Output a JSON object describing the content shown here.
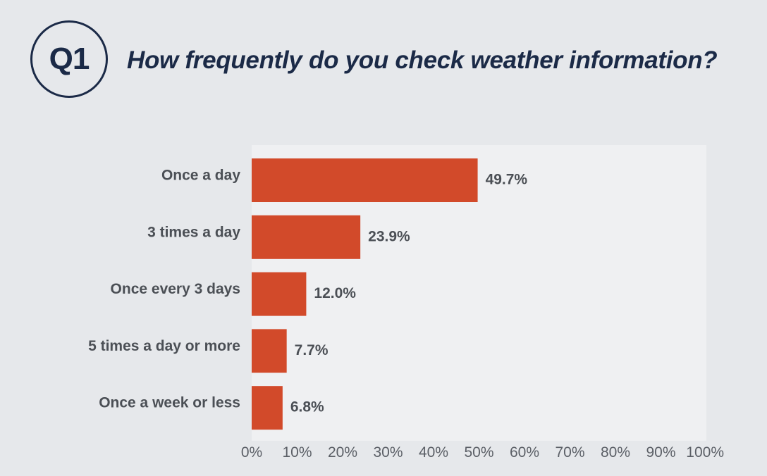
{
  "header": {
    "badge": "Q1",
    "question": "How frequently do you check weather information?"
  },
  "colors": {
    "bar": "#d24a2a",
    "plot_background": "#eff0f2",
    "page_background": "#e6e8eb",
    "title": "#1b2a47"
  },
  "chart_data": {
    "type": "bar",
    "orientation": "horizontal",
    "categories": [
      "Once a day",
      "3 times a day",
      "Once every 3 days",
      "5 times a day or more",
      "Once a week or less"
    ],
    "values": [
      49.7,
      23.9,
      12.0,
      7.7,
      6.8
    ],
    "value_labels": [
      "49.7%",
      "23.9%",
      "12.0%",
      "7.7%",
      "6.8%"
    ],
    "xlim": [
      0,
      100
    ],
    "x_ticks": [
      "0%",
      "10%",
      "20%",
      "30%",
      "40%",
      "50%",
      "60%",
      "70%",
      "80%",
      "90%",
      "100%"
    ],
    "grid": false,
    "legend": "none"
  }
}
